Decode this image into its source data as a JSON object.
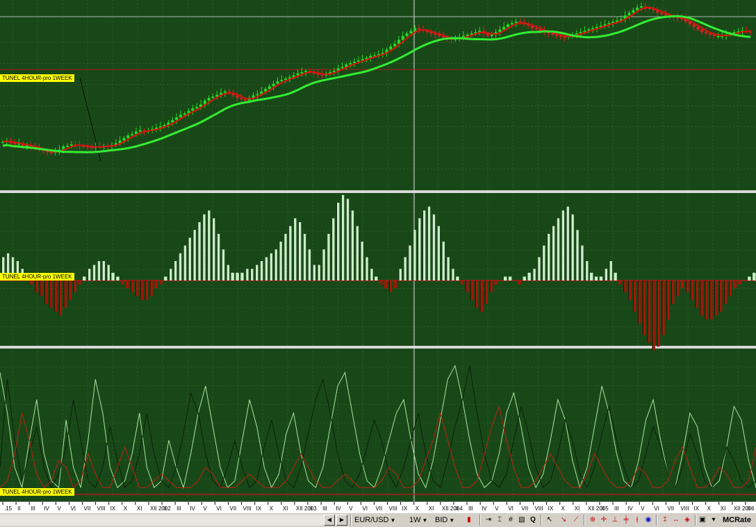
{
  "chart_data": {
    "type": "line",
    "symbol": "EUR/USD",
    "timeframe": "1W",
    "price_type": "BID",
    "pane_labels": [
      "TUNEL 4HOUR-pro 1WEEK",
      "TUNEL 4HOUR-pro 1WEEK",
      "TUNEL 4HOUR-pro 1WEEK"
    ],
    "time_axis_labels": [
      ".15",
      "II",
      "III",
      "IV",
      "V",
      "VI",
      "VII",
      "VIII",
      "IX",
      "X",
      "XI",
      "XII 2002",
      "II",
      "III",
      "IV",
      "V",
      "VI",
      "VII",
      "VIII",
      "IX",
      "X",
      "XI",
      "XII 2003",
      "II",
      "III",
      "IV",
      "V",
      "VI",
      "VII",
      "VIII",
      "IX",
      "X",
      "XI",
      "XII 2004",
      "II",
      "III",
      "IV",
      "V",
      "VI",
      "VII",
      "VIII",
      "IX",
      "X",
      "XI",
      "XII 2005",
      "II",
      "III",
      "IV",
      "V",
      "VI",
      "VII",
      "VIII",
      "IX",
      "X",
      "XI",
      "XII 2006",
      "II"
    ],
    "price_series": {
      "comment": "approximate weekly close path, relative price level 0 (low) .. 100 (high)",
      "close": [
        62,
        64,
        60,
        58,
        60,
        55,
        57,
        55,
        52,
        50,
        48,
        46,
        45,
        47,
        50,
        55,
        56,
        58,
        57,
        56,
        55,
        54,
        53,
        55,
        54,
        56,
        55,
        57,
        60,
        64,
        68,
        72,
        74,
        78,
        80,
        78,
        80,
        82,
        84,
        86,
        88,
        92,
        96,
        100,
        104,
        106,
        110,
        114,
        116,
        120,
        126,
        130,
        132,
        135,
        138,
        140,
        138,
        134,
        130,
        128,
        126,
        130,
        134,
        136,
        140,
        144,
        148,
        152,
        156,
        158,
        160,
        162,
        165,
        168,
        170,
        172,
        170,
        168,
        166,
        165,
        168,
        170,
        172,
        176,
        178,
        182,
        184,
        186,
        188,
        190,
        192,
        195,
        196,
        198,
        200,
        205,
        210,
        214,
        220,
        226,
        230,
        234,
        238,
        236,
        234,
        232,
        230,
        228,
        226,
        224,
        222,
        220,
        222,
        224,
        226,
        228,
        230,
        232,
        234,
        230,
        226,
        228,
        232,
        236,
        240,
        244,
        246,
        248,
        246,
        244,
        242,
        238,
        236,
        234,
        232,
        230,
        228,
        226,
        225,
        224,
        226,
        228,
        230,
        232,
        234,
        236,
        238,
        240,
        242,
        244,
        246,
        248,
        250,
        252,
        258,
        262,
        266,
        270,
        272,
        270,
        268,
        266,
        262,
        260,
        258,
        256,
        255,
        254,
        252,
        248,
        244,
        240,
        236,
        232,
        230,
        228,
        226,
        226,
        226,
        228,
        230,
        232,
        233,
        234,
        233,
        232
      ]
    },
    "indicator_histogram": {
      "comment": "oscillator histogram values, positive above zero line, negative below",
      "values": [
        6,
        7,
        6,
        5,
        3,
        1,
        -1,
        -3,
        -4,
        -6,
        -7,
        -8,
        -9,
        -7,
        -5,
        -3,
        -1,
        1,
        3,
        4,
        5,
        5,
        4,
        2,
        1,
        -1,
        -2,
        -3,
        -4,
        -5,
        -5,
        -4,
        -2,
        -1,
        1,
        3,
        5,
        7,
        9,
        11,
        13,
        15,
        17,
        18,
        16,
        12,
        8,
        4,
        2,
        2,
        2,
        3,
        3,
        4,
        5,
        6,
        7,
        8,
        10,
        12,
        14,
        16,
        15,
        12,
        8,
        4,
        4,
        8,
        12,
        16,
        20,
        22,
        21,
        18,
        14,
        10,
        6,
        3,
        1,
        -1,
        -2,
        -3,
        -2,
        3,
        6,
        9,
        13,
        16,
        18,
        19,
        17,
        14,
        10,
        6,
        3,
        1,
        -1,
        -3,
        -5,
        -7,
        -8,
        -6,
        -3,
        -1,
        0,
        1,
        1,
        0,
        -1,
        1,
        2,
        3,
        6,
        9,
        12,
        14,
        16,
        18,
        19,
        17,
        13,
        9,
        5,
        2,
        1,
        1,
        3,
        5,
        2,
        -1,
        -3,
        -5,
        -8,
        -11,
        -14,
        -16,
        -18,
        -17,
        -14,
        -10,
        -6,
        -4,
        -2,
        -3,
        -5,
        -7,
        -9,
        -10,
        -10,
        -9,
        -8,
        -6,
        -4,
        -2,
        -1,
        0,
        1,
        2
      ]
    },
    "indicator_lines": {
      "comment": "three oscillator lines, values 0..100",
      "light": [
        90,
        60,
        20,
        5,
        40,
        70,
        30,
        10,
        5,
        55,
        20,
        5,
        40,
        85,
        60,
        20,
        5,
        10,
        30,
        60,
        20,
        5,
        10,
        40,
        20,
        5,
        30,
        60,
        80,
        50,
        20,
        5,
        10,
        40,
        70,
        50,
        20,
        5,
        15,
        45,
        60,
        30,
        10,
        5,
        20,
        50,
        80,
        90,
        60,
        30,
        10,
        5,
        20,
        40,
        60,
        70,
        40,
        15,
        5,
        25,
        55,
        85,
        95,
        70,
        40,
        15,
        5,
        10,
        30,
        60,
        75,
        50,
        20,
        5,
        15,
        40,
        70,
        55,
        25,
        5,
        20,
        50,
        80,
        60,
        30,
        10,
        5,
        25,
        55,
        70,
        40,
        15,
        5,
        30,
        60,
        50,
        20,
        5,
        10,
        35,
        65,
        55,
        25,
        5
      ],
      "dark": [
        20,
        85,
        40,
        10,
        30,
        50,
        20,
        5,
        15,
        35,
        70,
        40,
        10,
        5,
        20,
        50,
        25,
        5,
        10,
        30,
        60,
        30,
        10,
        5,
        20,
        45,
        75,
        60,
        30,
        10,
        5,
        20,
        40,
        20,
        5,
        10,
        35,
        55,
        30,
        10,
        5,
        20,
        45,
        70,
        85,
        60,
        30,
        10,
        5,
        15,
        35,
        55,
        40,
        15,
        5,
        20,
        40,
        60,
        30,
        10,
        5,
        25,
        50,
        70,
        95,
        60,
        30,
        10,
        5,
        15,
        40,
        65,
        45,
        20,
        5,
        10,
        30,
        55,
        40,
        15,
        5,
        20,
        45,
        65,
        40,
        20,
        5,
        10,
        30,
        50,
        35,
        15,
        5,
        20,
        45,
        30,
        10,
        5,
        15,
        35,
        25,
        10,
        5,
        10
      ],
      "red": [
        5,
        10,
        30,
        60,
        40,
        15,
        5,
        10,
        25,
        20,
        5,
        10,
        30,
        15,
        5,
        5,
        20,
        35,
        20,
        5,
        5,
        10,
        15,
        10,
        5,
        5,
        5,
        10,
        20,
        15,
        5,
        5,
        5,
        10,
        15,
        10,
        5,
        5,
        5,
        10,
        20,
        30,
        20,
        10,
        5,
        5,
        10,
        15,
        10,
        5,
        5,
        5,
        10,
        20,
        15,
        5,
        5,
        10,
        25,
        40,
        60,
        40,
        20,
        5,
        5,
        10,
        30,
        50,
        65,
        40,
        20,
        5,
        5,
        10,
        20,
        30,
        20,
        10,
        5,
        5,
        15,
        30,
        20,
        10,
        5,
        5,
        10,
        20,
        15,
        5,
        5,
        10,
        25,
        35,
        20,
        5,
        5,
        10,
        20,
        15,
        5,
        5,
        10,
        35
      ]
    }
  },
  "toolbar": {
    "symbol_label": "EUR/USD",
    "timeframe_label": "1W",
    "price_label": "BID",
    "brand_label": "MCRate"
  },
  "colors": {
    "background": "#194818",
    "candle_up": "#22dd22",
    "candle_down": "#dd2222",
    "ma_fast": "#dd1111",
    "ma_slow": "#33ee33",
    "hist_pos": "#c8f0c8",
    "hist_neg": "#a01808",
    "line_light": "#a8e8a0",
    "line_dark": "#0a200a",
    "line_red": "#c02010"
  }
}
